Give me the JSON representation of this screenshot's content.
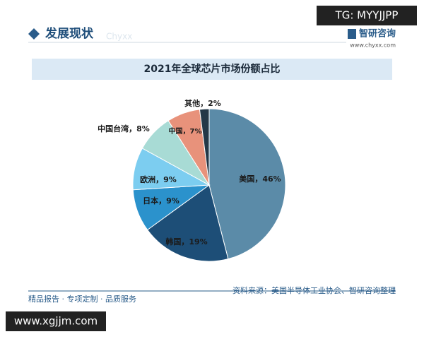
{
  "header": {
    "title": "发展现状",
    "watermark": "Chyxx",
    "logo": "智研咨询",
    "site": "www.chyxx.com"
  },
  "chart_data": {
    "type": "pie",
    "title": "2021年全球芯片市场份额占比",
    "categories": [
      "美国",
      "韩国",
      "日本",
      "欧洲",
      "中国台湾",
      "中国",
      "其他"
    ],
    "values": [
      46,
      19,
      9,
      9,
      8,
      7,
      2
    ],
    "value_labels": [
      "美国，46%",
      "韩国，19%",
      "日本，9%",
      "欧洲，9%",
      "中国台湾，8%",
      "中国，7%",
      "其他，2%"
    ],
    "colors": [
      "#5b8ba8",
      "#1d4e77",
      "#2b92cc",
      "#7ccdf0",
      "#a8dbd5",
      "#e8927b",
      "#243848"
    ]
  },
  "footer": {
    "left": "精品报告 · 专项定制 · 品质服务",
    "source": "资料来源：美国半导体工业协会、智研咨询整理"
  },
  "overlays": {
    "top": "TG: MYYJJPP",
    "bottom": "www.xgjjm.com"
  }
}
